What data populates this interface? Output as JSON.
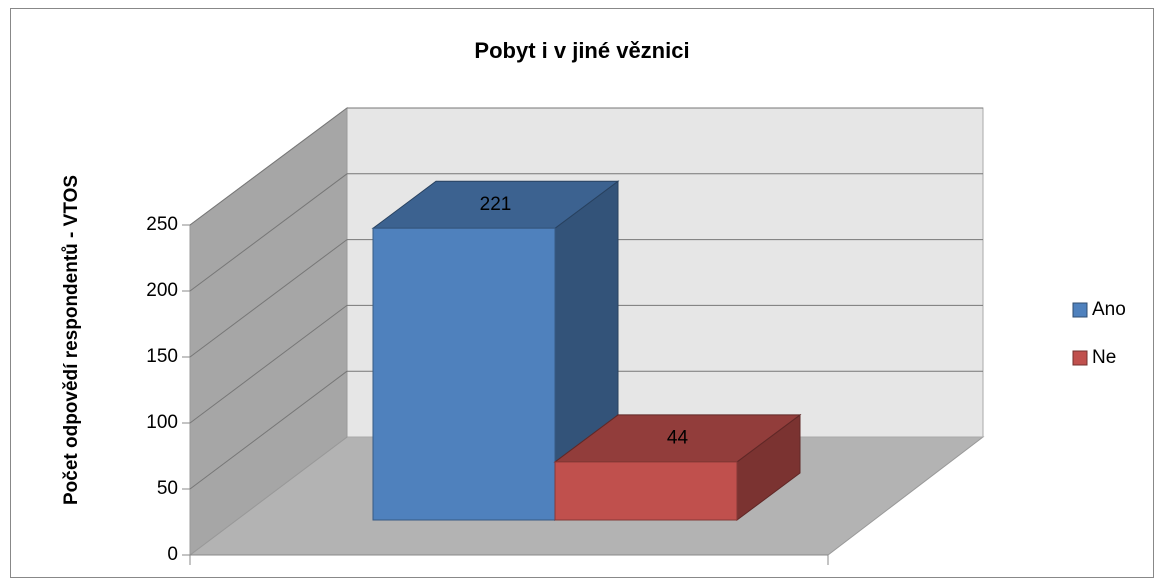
{
  "chart_data": {
    "type": "bar3d",
    "title": "Pobyt i v jiné věznici",
    "ylabel": "Počet odpovědí respondentů - VTOS",
    "series": [
      {
        "name": "Ano",
        "color": "#4f81bd",
        "values": [
          221
        ]
      },
      {
        "name": "Ne",
        "color": "#c0504d",
        "values": [
          44
        ]
      }
    ],
    "ylim": [
      0,
      250
    ],
    "yticks": [
      0,
      50,
      100,
      150,
      200,
      250
    ],
    "grid": true,
    "legend": "right"
  }
}
